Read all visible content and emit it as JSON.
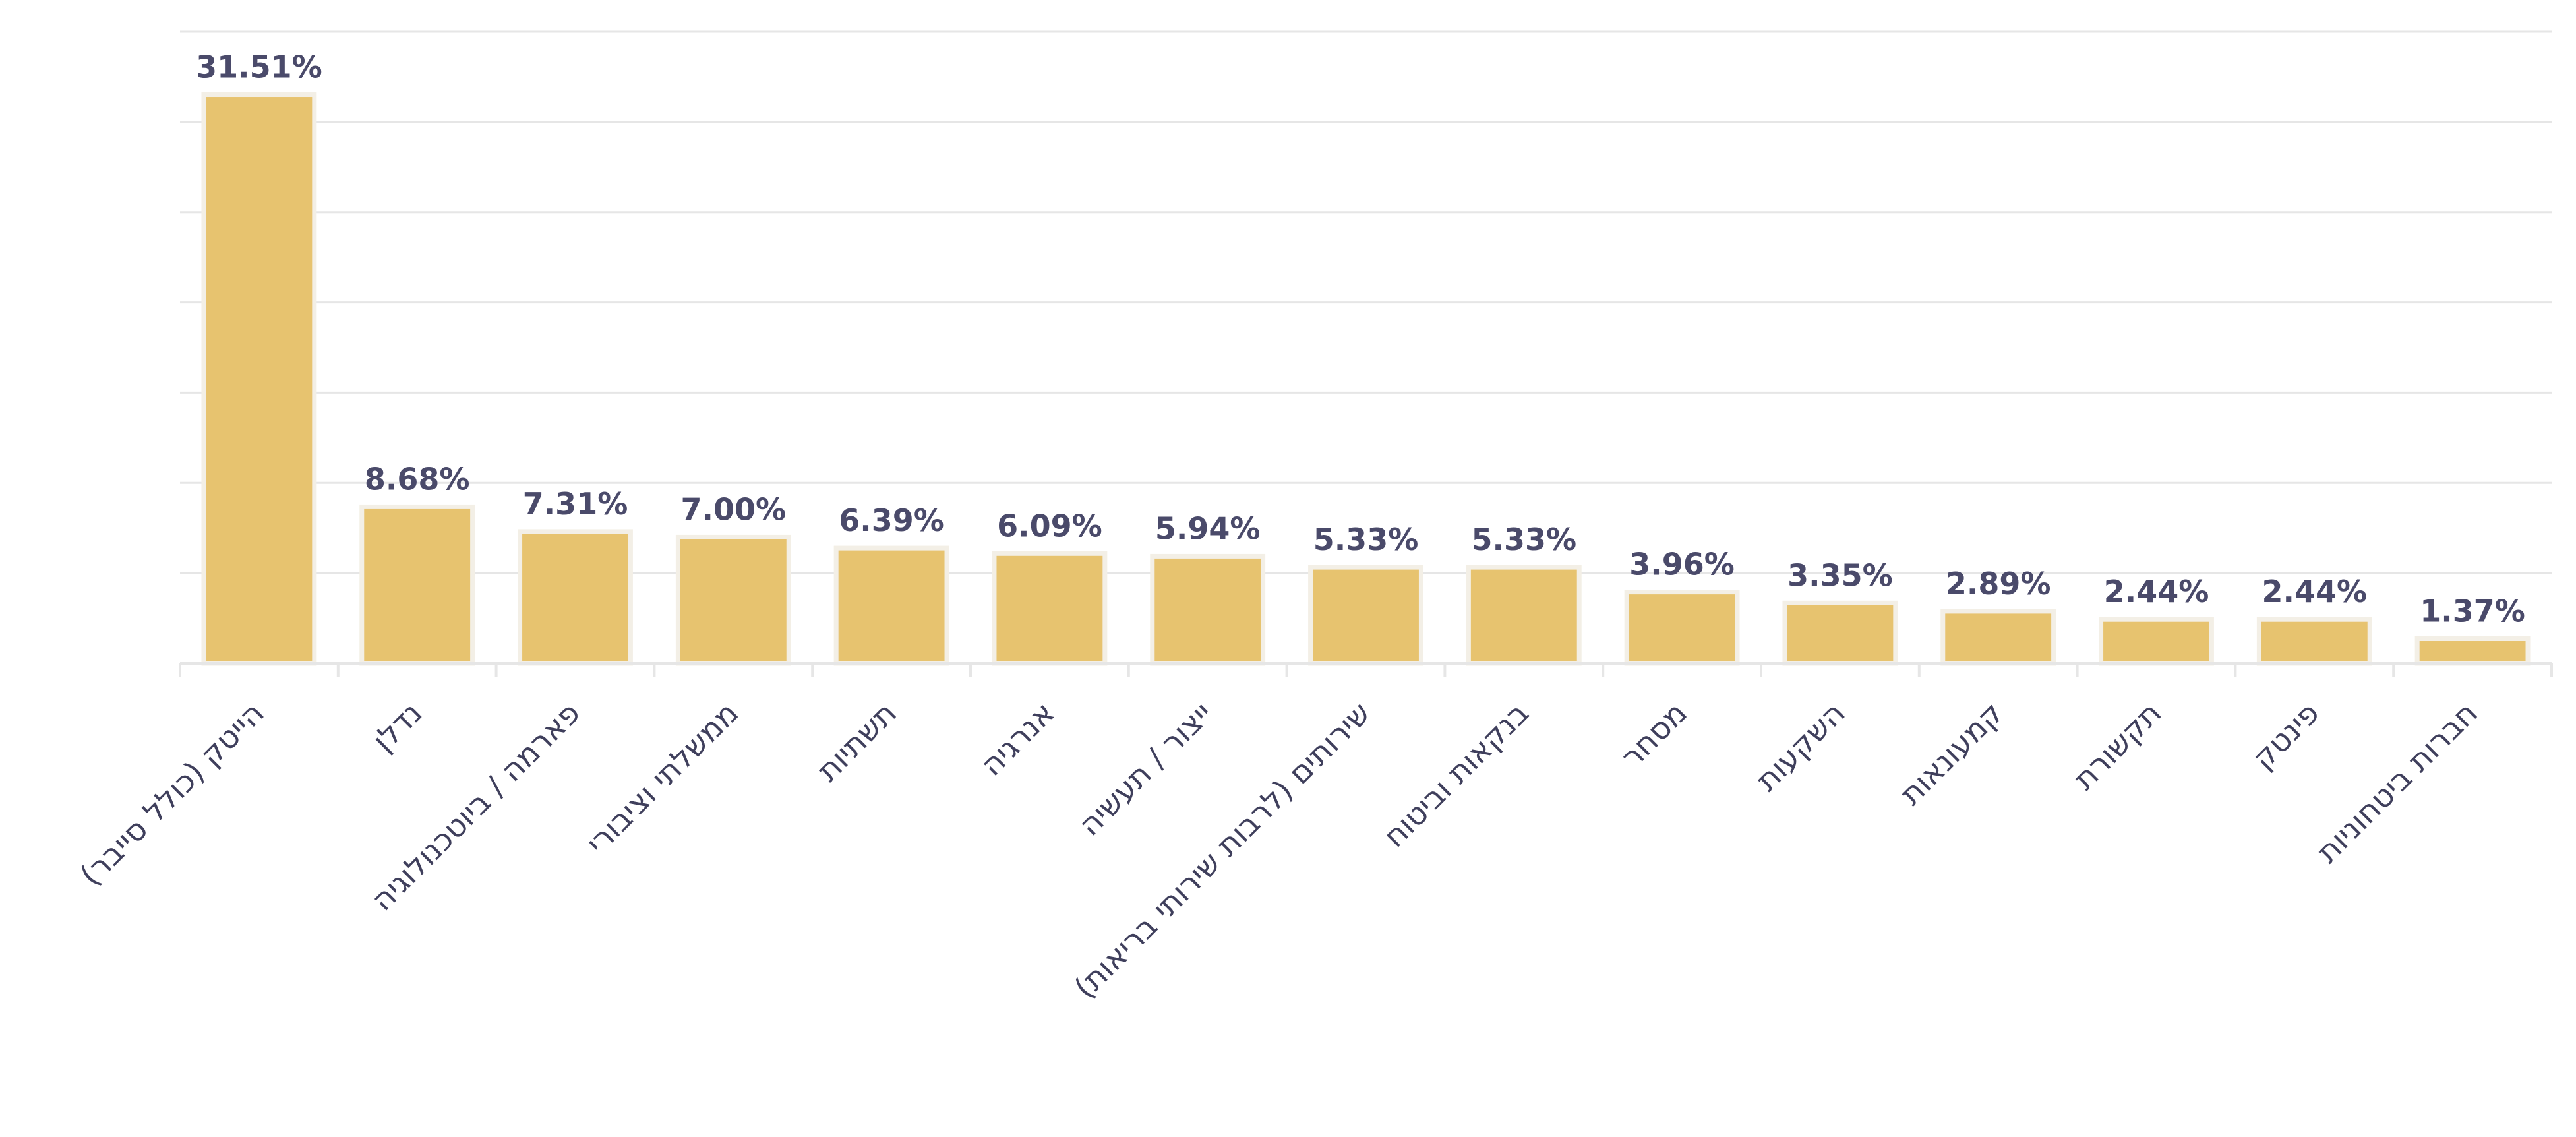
{
  "chart_data": {
    "type": "bar",
    "categories": [
      "הייטק (כולל סייבר)",
      "נדלן",
      "פארמה / ביוטכנולוגיה",
      "ממשלתי וציבורי",
      "תשתיות",
      "אנרגיה",
      "ייצור / תעשיה",
      "שירותים (לרבות שירותי בריאות)",
      "בנקאות וביטוח",
      "מסחר",
      "השקעות",
      "קמעונאות",
      "תקשורת",
      "פינטק",
      "חברות ביטחוניות"
    ],
    "values": [
      31.51,
      8.68,
      7.31,
      7.0,
      6.39,
      6.09,
      5.94,
      5.33,
      5.33,
      3.96,
      3.35,
      2.89,
      2.44,
      2.44,
      1.37
    ],
    "data_labels": [
      "31.51%",
      "8.68%",
      "7.31%",
      "7.00%",
      "6.39%",
      "6.09%",
      "5.94%",
      "5.33%",
      "5.33%",
      "3.96%",
      "3.35%",
      "2.89%",
      "2.44%",
      "2.44%",
      "1.37%"
    ],
    "ylim": [
      0,
      35
    ],
    "grid": true,
    "title": "",
    "xlabel": "",
    "ylabel": ""
  },
  "colors": {
    "bar": "#e7c36f",
    "label": "#4a4a6a",
    "grid": "#e6e6e6"
  }
}
